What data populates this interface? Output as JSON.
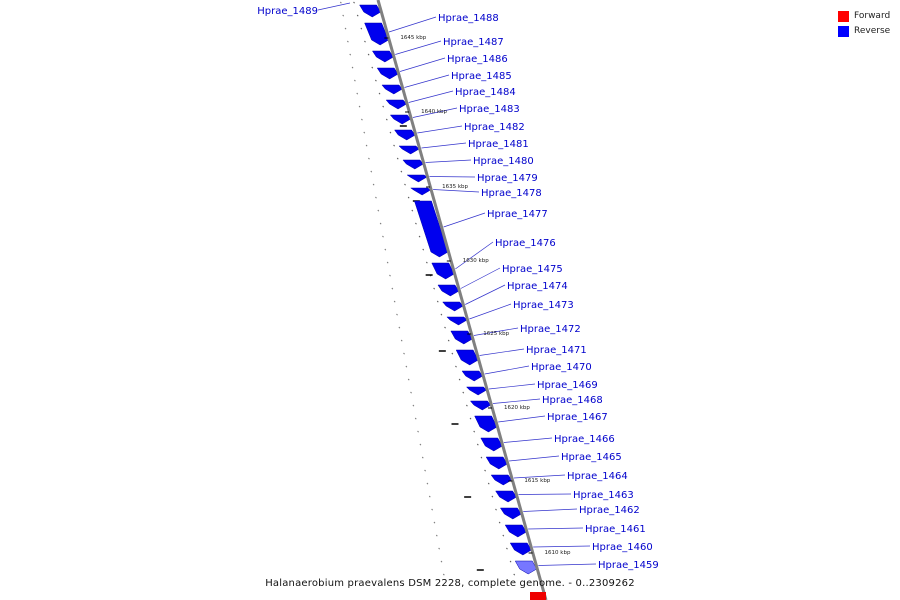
{
  "genome": {
    "caption": "Halanaerobium praevalens DSM 2228, complete genome. - 0..2309262"
  },
  "legend": {
    "forward_label": "Forward",
    "forward_color": "#ff0000",
    "reverse_label": "Reverse",
    "reverse_color": "#0000ff"
  },
  "genes": [
    {
      "name": "Hprae_1489",
      "strand": "reverse"
    },
    {
      "name": "Hprae_1488",
      "strand": "reverse"
    },
    {
      "name": "Hprae_1487",
      "strand": "reverse"
    },
    {
      "name": "Hprae_1486",
      "strand": "reverse"
    },
    {
      "name": "Hprae_1485",
      "strand": "reverse"
    },
    {
      "name": "Hprae_1484",
      "strand": "reverse"
    },
    {
      "name": "Hprae_1483",
      "strand": "reverse"
    },
    {
      "name": "Hprae_1482",
      "strand": "reverse"
    },
    {
      "name": "Hprae_1481",
      "strand": "reverse"
    },
    {
      "name": "Hprae_1480",
      "strand": "reverse"
    },
    {
      "name": "Hprae_1479",
      "strand": "reverse"
    },
    {
      "name": "Hprae_1478",
      "strand": "reverse"
    },
    {
      "name": "Hprae_1477",
      "strand": "reverse"
    },
    {
      "name": "Hprae_1476",
      "strand": "reverse"
    },
    {
      "name": "Hprae_1475",
      "strand": "reverse"
    },
    {
      "name": "Hprae_1474",
      "strand": "reverse"
    },
    {
      "name": "Hprae_1473",
      "strand": "reverse"
    },
    {
      "name": "Hprae_1472",
      "strand": "reverse"
    },
    {
      "name": "Hprae_1471",
      "strand": "reverse"
    },
    {
      "name": "Hprae_1470",
      "strand": "reverse"
    },
    {
      "name": "Hprae_1469",
      "strand": "reverse"
    },
    {
      "name": "Hprae_1468",
      "strand": "reverse"
    },
    {
      "name": "Hprae_1467",
      "strand": "reverse"
    },
    {
      "name": "Hprae_1466",
      "strand": "reverse"
    },
    {
      "name": "Hprae_1465",
      "strand": "reverse"
    },
    {
      "name": "Hprae_1464",
      "strand": "reverse"
    },
    {
      "name": "Hprae_1463",
      "strand": "reverse"
    },
    {
      "name": "Hprae_1462",
      "strand": "reverse"
    },
    {
      "name": "Hprae_1461",
      "strand": "reverse"
    },
    {
      "name": "Hprae_1460",
      "strand": "reverse"
    },
    {
      "name": "Hprae_1459",
      "strand": "reverse"
    }
  ],
  "ticks": [
    "1645 kbp",
    "1640 kbp",
    "1635 kbp",
    "1630 kbp",
    "1625 kbp",
    "1620 kbp",
    "1615 kbp",
    "1610 kbp"
  ]
}
